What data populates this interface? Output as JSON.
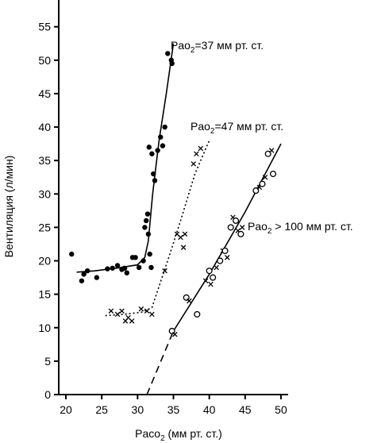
{
  "chart_data": {
    "type": "scatter",
    "xlabel": "Paco",
    "xlabel_sub": "2",
    "xlabel_rest": " (мм рт. ст.)",
    "ylabel": "Вентиляция (л/мин)",
    "xlim": [
      19,
      51
    ],
    "ylim": [
      0,
      59
    ],
    "xticks": [
      "20",
      "25",
      "30",
      "35",
      "40",
      "45",
      "50"
    ],
    "yticks": [
      "0",
      "5",
      "10",
      "15",
      "20",
      "25",
      "30",
      "35",
      "40",
      "45",
      "50",
      "55"
    ],
    "colors": {
      "ink": "#000000",
      "background": "#ffffff"
    },
    "series": [
      {
        "label_main": "Pao",
        "label_sub": "2",
        "label_rest": "=37 мм рт. ст.",
        "marker": "filled-circle",
        "line_style": "solid",
        "line": [
          [
            21.5,
            18.3
          ],
          [
            24,
            18.5
          ],
          [
            27,
            18.9
          ],
          [
            30,
            19.4
          ],
          [
            31,
            20.5
          ],
          [
            31.5,
            23
          ],
          [
            32.1,
            30
          ],
          [
            33,
            38
          ],
          [
            34,
            45
          ],
          [
            35,
            52.5
          ]
        ],
        "points": [
          [
            20.8,
            21
          ],
          [
            22.2,
            17
          ],
          [
            22.5,
            18
          ],
          [
            23,
            18.5
          ],
          [
            24.3,
            17.5
          ],
          [
            25.8,
            18.8
          ],
          [
            26.5,
            18.9
          ],
          [
            27.2,
            19.3
          ],
          [
            27.8,
            18.7
          ],
          [
            28.2,
            18.9
          ],
          [
            28.5,
            18.2
          ],
          [
            29.3,
            20.5
          ],
          [
            29.7,
            20.5
          ],
          [
            30.2,
            19
          ],
          [
            30.8,
            20
          ],
          [
            31,
            25
          ],
          [
            31.2,
            26
          ],
          [
            31.4,
            27
          ],
          [
            31.5,
            24
          ],
          [
            31.7,
            21
          ],
          [
            31.9,
            19
          ],
          [
            31.6,
            37
          ],
          [
            32,
            36
          ],
          [
            32.2,
            33
          ],
          [
            32.4,
            32
          ],
          [
            32.8,
            36.5
          ],
          [
            33.2,
            38.5
          ],
          [
            33.5,
            37.2
          ],
          [
            33.8,
            40
          ],
          [
            34.2,
            51
          ],
          [
            34.7,
            50
          ],
          [
            34.8,
            49.5
          ]
        ]
      },
      {
        "label_main": "Pao",
        "label_sub": "2",
        "label_rest": "=47 мм рт. ст.",
        "marker": "x",
        "line_style": "dotted",
        "line": [
          [
            25.5,
            11.8
          ],
          [
            28,
            12
          ],
          [
            30.5,
            12.3
          ],
          [
            32,
            13
          ],
          [
            34.5,
            21
          ],
          [
            36,
            26
          ],
          [
            38,
            33
          ],
          [
            40,
            38
          ]
        ],
        "points": [
          [
            26.3,
            12.5
          ],
          [
            27.2,
            12
          ],
          [
            27.8,
            12.5
          ],
          [
            28.3,
            11
          ],
          [
            28.7,
            11.5
          ],
          [
            29.2,
            11
          ],
          [
            30.5,
            12.8
          ],
          [
            31.3,
            12.5
          ],
          [
            32,
            12
          ],
          [
            33.8,
            18.5
          ],
          [
            35.5,
            24
          ],
          [
            36,
            23.5
          ],
          [
            36.4,
            22
          ],
          [
            36.6,
            24
          ],
          [
            37.8,
            34.5
          ],
          [
            38.2,
            36
          ],
          [
            38.8,
            36.8
          ]
        ]
      },
      {
        "label_main": "Pao",
        "label_sub": "2",
        "label_rest": " > 100 мм рт. ст.",
        "marker": "mixed-open-circle-x",
        "line_style": "solid",
        "line": [
          [
            35,
            9.5
          ],
          [
            40,
            18
          ],
          [
            45,
            27.3
          ],
          [
            50,
            37.5
          ]
        ],
        "extrapolation": [
          [
            31.3,
            0
          ],
          [
            35,
            9.5
          ]
        ],
        "points": [
          [
            34.8,
            9.5
          ],
          [
            35.2,
            9
          ],
          [
            36.8,
            14.5
          ],
          [
            37.2,
            14
          ],
          [
            38.3,
            12
          ],
          [
            39.5,
            17
          ],
          [
            40,
            18.5
          ],
          [
            40.2,
            16.5
          ],
          [
            40.5,
            17.5
          ],
          [
            41,
            19
          ],
          [
            41.5,
            20
          ],
          [
            41.9,
            21.5
          ],
          [
            42.2,
            21.5
          ],
          [
            42.5,
            20.5
          ],
          [
            43,
            25
          ],
          [
            43.3,
            26.5
          ],
          [
            43.7,
            26
          ],
          [
            44,
            24.5
          ],
          [
            44.4,
            24
          ],
          [
            44.6,
            25
          ],
          [
            46.5,
            30.5
          ],
          [
            47,
            31
          ],
          [
            47.4,
            31.5
          ],
          [
            47.8,
            32.5
          ],
          [
            48.2,
            36
          ],
          [
            48.7,
            36.5
          ],
          [
            48.9,
            33
          ]
        ]
      }
    ]
  }
}
